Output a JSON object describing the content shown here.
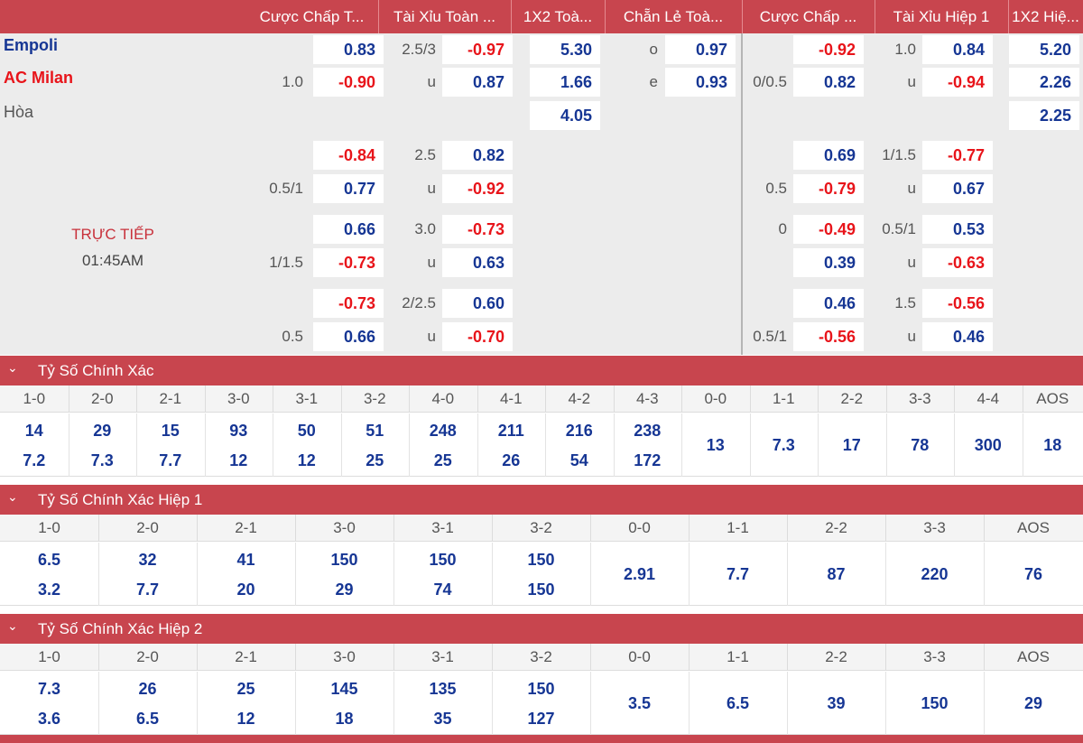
{
  "header": [
    "Cược Chấp T...",
    "Tài Xỉu Toàn ...",
    "1X2 Toà...",
    "Chẵn Lẻ Toà...",
    "Cược Chấp ...",
    "Tài Xỉu Hiệp 1",
    "1X2 Hiệ..."
  ],
  "match": {
    "home": "Empoli",
    "away": "AC Milan",
    "draw": "Hòa",
    "status": "TRỰC TIẾP",
    "time": "01:45AM"
  },
  "rows": [
    {
      "ah_l": "",
      "ah_o": "0.83",
      "ou_l": "2.5/3",
      "ou_o": "-0.97",
      "x12": "5.30",
      "oe_l": "o",
      "oe_o": "0.97",
      "hah_l": "",
      "hah_o": "-0.92",
      "hou_l": "1.0",
      "hou_o": "0.84",
      "hx12": "5.20"
    },
    {
      "ah_l": "1.0",
      "ah_o": "-0.90",
      "ou_l": "u",
      "ou_o": "0.87",
      "x12": "1.66",
      "oe_l": "e",
      "oe_o": "0.93",
      "hah_l": "0/0.5",
      "hah_o": "0.82",
      "hou_l": "u",
      "hou_o": "-0.94",
      "hx12": "2.26"
    },
    {
      "ah_l": "",
      "ah_o": "",
      "ou_l": "",
      "ou_o": "",
      "x12": "4.05",
      "oe_l": "",
      "oe_o": "",
      "hah_l": "",
      "hah_o": "",
      "hou_l": "",
      "hou_o": "",
      "hx12": "2.25"
    },
    {
      "ah_l": "",
      "ah_o": "-0.84",
      "ou_l": "2.5",
      "ou_o": "0.82",
      "x12": "",
      "oe_l": "",
      "oe_o": "",
      "hah_l": "",
      "hah_o": "0.69",
      "hou_l": "1/1.5",
      "hou_o": "-0.77",
      "hx12": ""
    },
    {
      "ah_l": "0.5/1",
      "ah_o": "0.77",
      "ou_l": "u",
      "ou_o": "-0.92",
      "x12": "",
      "oe_l": "",
      "oe_o": "",
      "hah_l": "0.5",
      "hah_o": "-0.79",
      "hou_l": "u",
      "hou_o": "0.67",
      "hx12": ""
    },
    {
      "ah_l": "",
      "ah_o": "0.66",
      "ou_l": "3.0",
      "ou_o": "-0.73",
      "x12": "",
      "oe_l": "",
      "oe_o": "",
      "hah_l": "0",
      "hah_o": "-0.49",
      "hou_l": "0.5/1",
      "hou_o": "0.53",
      "hx12": ""
    },
    {
      "ah_l": "1/1.5",
      "ah_o": "-0.73",
      "ou_l": "u",
      "ou_o": "0.63",
      "x12": "",
      "oe_l": "",
      "oe_o": "",
      "hah_l": "",
      "hah_o": "0.39",
      "hou_l": "u",
      "hou_o": "-0.63",
      "hx12": ""
    },
    {
      "ah_l": "",
      "ah_o": "-0.73",
      "ou_l": "2/2.5",
      "ou_o": "0.60",
      "x12": "",
      "oe_l": "",
      "oe_o": "",
      "hah_l": "",
      "hah_o": "0.46",
      "hou_l": "1.5",
      "hou_o": "-0.56",
      "hx12": ""
    },
    {
      "ah_l": "0.5",
      "ah_o": "0.66",
      "ou_l": "u",
      "ou_o": "-0.70",
      "x12": "",
      "oe_l": "",
      "oe_o": "",
      "hah_l": "0.5/1",
      "hah_o": "-0.56",
      "hou_l": "u",
      "hou_o": "0.46",
      "hx12": ""
    }
  ],
  "sections": [
    {
      "title": "Tỷ Số Chính Xác",
      "chevron": "chevron-down-icon",
      "cols": [
        "1-0",
        "2-0",
        "2-1",
        "3-0",
        "3-1",
        "3-2",
        "4-0",
        "4-1",
        "4-2",
        "4-3",
        "0-0",
        "1-1",
        "2-2",
        "3-3",
        "4-4",
        "AOS"
      ],
      "top": [
        "14",
        "29",
        "15",
        "93",
        "50",
        "51",
        "248",
        "211",
        "216",
        "238",
        "13",
        "7.3",
        "17",
        "78",
        "300",
        "18"
      ],
      "bot": [
        "7.2",
        "7.3",
        "7.7",
        "12",
        "12",
        "25",
        "25",
        "26",
        "54",
        "172",
        "",
        "",
        "",
        "",
        "",
        ""
      ]
    },
    {
      "title": "Tỷ Số Chính Xác Hiệp 1",
      "chevron": "chevron-down-icon",
      "cols": [
        "1-0",
        "2-0",
        "2-1",
        "3-0",
        "3-1",
        "3-2",
        "0-0",
        "1-1",
        "2-2",
        "3-3",
        "AOS"
      ],
      "top": [
        "6.5",
        "32",
        "41",
        "150",
        "150",
        "150",
        "2.91",
        "7.7",
        "87",
        "220",
        "76"
      ],
      "bot": [
        "3.2",
        "7.7",
        "20",
        "29",
        "74",
        "150",
        "",
        "",
        "",
        "",
        ""
      ]
    },
    {
      "title": "Tỷ Số Chính Xác Hiệp 2",
      "chevron": "chevron-down-icon",
      "cols": [
        "1-0",
        "2-0",
        "2-1",
        "3-0",
        "3-1",
        "3-2",
        "0-0",
        "1-1",
        "2-2",
        "3-3",
        "AOS"
      ],
      "top": [
        "7.3",
        "26",
        "25",
        "145",
        "135",
        "150",
        "3.5",
        "6.5",
        "39",
        "150",
        "29"
      ],
      "bot": [
        "3.6",
        "6.5",
        "12",
        "18",
        "35",
        "127",
        "",
        "",
        "",
        "",
        ""
      ]
    }
  ],
  "colors": {
    "accent": "#c8454e",
    "positive": "#163694",
    "negative": "#e8141a"
  }
}
